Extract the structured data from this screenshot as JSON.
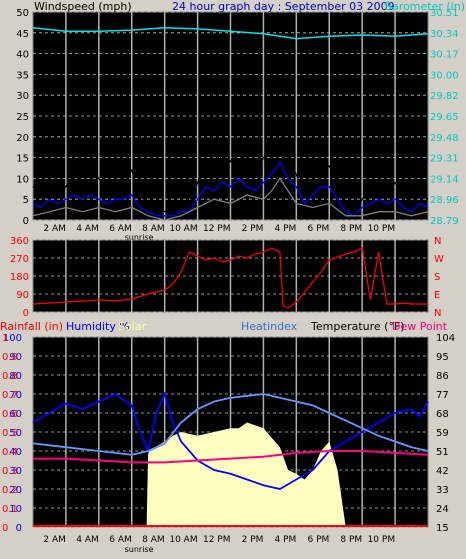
{
  "chart_data": [
    {
      "type": "line",
      "title": "24 hour graph day : September 03 2009",
      "ylabel": "Windspeed (mph)",
      "y2label": "Barometer (in)",
      "x_ticks": [
        "2 AM",
        "4 AM",
        "6 AM",
        "8 AM",
        "10 AM",
        "12 PM",
        "2 PM",
        "4 PM",
        "6 PM",
        "8 PM",
        "10 PM"
      ],
      "x_ticks_hours": [
        2,
        4,
        6,
        8,
        10,
        12,
        14,
        16,
        18,
        20,
        22
      ],
      "x_annotation": "sunrise",
      "x_annotation_hour": 6.9,
      "xlim": [
        0,
        24
      ],
      "ylim": [
        0,
        50
      ],
      "y_ticks": [
        0,
        5,
        10,
        15,
        20,
        25,
        30,
        35,
        40,
        45,
        50
      ],
      "y2lim": [
        28.79,
        30.51
      ],
      "y2_ticks": [
        "28.79",
        "28.96",
        "29.14",
        "29.31",
        "29.48",
        "29.65",
        "29.82",
        "30.00",
        "30.17",
        "30.34",
        "30.51"
      ],
      "series": [
        {
          "name": "Windspeed (mph)",
          "role": "gust",
          "color": "#000000",
          "x": [
            0,
            0.5,
            1,
            1.5,
            2,
            2.5,
            3,
            3.5,
            4,
            4.5,
            5,
            5.5,
            6,
            6.5,
            7,
            7.5,
            8,
            8.5,
            9,
            9.5,
            10,
            10.5,
            11,
            11.5,
            12,
            12.5,
            13,
            13.5,
            14,
            14.5,
            15,
            15.5,
            16,
            16.5,
            17,
            17.5,
            18,
            18.5,
            19,
            19.5,
            20,
            20.5,
            21,
            21.5,
            22,
            22.5,
            23,
            23.5,
            24
          ],
          "y": [
            8,
            6,
            10,
            7,
            8,
            11,
            9,
            12,
            10,
            8,
            9,
            10,
            12,
            6,
            4,
            3,
            2,
            3,
            5,
            4,
            9,
            14,
            12,
            16,
            14,
            18,
            13,
            11,
            15,
            17,
            22,
            14,
            11,
            6,
            10,
            12,
            13,
            9,
            3,
            1,
            5,
            7,
            8,
            6,
            9,
            6,
            4,
            7,
            5
          ]
        },
        {
          "name": "Windspeed (mph)",
          "role": "average",
          "color": "#0000ff",
          "x": [
            0,
            0.5,
            1,
            1.5,
            2,
            2.5,
            3,
            3.5,
            4,
            4.5,
            5,
            5.5,
            6,
            6.5,
            7,
            7.5,
            8,
            8.5,
            9,
            9.5,
            10,
            10.5,
            11,
            11.5,
            12,
            12.5,
            13,
            13.5,
            14,
            14.5,
            15,
            15.5,
            16,
            16.5,
            17,
            17.5,
            18,
            18.5,
            19,
            19.5,
            20,
            20.5,
            21,
            21.5,
            22,
            22.5,
            23,
            23.5,
            24
          ],
          "y": [
            4,
            3,
            5,
            4,
            5,
            6,
            5,
            6,
            5,
            4,
            5,
            5,
            6,
            3,
            2,
            1,
            1,
            1,
            2,
            2,
            5,
            8,
            7,
            9,
            8,
            10,
            8,
            7,
            9,
            11,
            14,
            10,
            8,
            4,
            6,
            8,
            8,
            5,
            2,
            1,
            3,
            4,
            5,
            4,
            5,
            3,
            2,
            4,
            3
          ]
        },
        {
          "name": "Windspeed (mph)",
          "role": "direction-speed",
          "color": "#808080",
          "x": [
            0,
            1,
            2,
            3,
            4,
            5,
            6,
            7,
            8,
            9,
            10,
            11,
            12,
            13,
            14,
            14.5,
            15,
            15.5,
            16,
            17,
            18,
            19,
            20,
            21,
            22,
            23,
            24
          ],
          "y": [
            1,
            2,
            3,
            2,
            3,
            2,
            3,
            1,
            0,
            1,
            3,
            5,
            4,
            6,
            5,
            7,
            10,
            7,
            4,
            3,
            4,
            1,
            1,
            2,
            2,
            1,
            2
          ]
        },
        {
          "name": "Barometer (in)",
          "axis": "y2",
          "color": "#00e5e5",
          "x": [
            0,
            2,
            4,
            6,
            8,
            10,
            12,
            14,
            16,
            18,
            20,
            22,
            24
          ],
          "y": [
            30.38,
            30.35,
            30.35,
            30.36,
            30.38,
            30.37,
            30.35,
            30.33,
            30.29,
            30.31,
            30.32,
            30.31,
            30.33
          ]
        }
      ]
    },
    {
      "type": "scatter",
      "ylim": [
        0,
        360
      ],
      "y_ticks": [
        0,
        90,
        180,
        270,
        360
      ],
      "y2_ticks": [
        "N",
        "E",
        "S",
        "W",
        "N"
      ],
      "series": [
        {
          "name": "Wind direction",
          "color": "#ff0000",
          "x": [
            0,
            1,
            2,
            3,
            4,
            5,
            6,
            7,
            8,
            8.5,
            9,
            9.5,
            10,
            10.5,
            11,
            11.5,
            12,
            12.5,
            13,
            13.5,
            14,
            14.5,
            15,
            15.2,
            15.5,
            16,
            16.5,
            17,
            17.5,
            18,
            19,
            19.5,
            20,
            20.5,
            21,
            21.5,
            22,
            22.5,
            23,
            24
          ],
          "y": [
            40,
            45,
            50,
            55,
            60,
            55,
            65,
            90,
            110,
            140,
            200,
            300,
            280,
            260,
            270,
            250,
            260,
            280,
            270,
            290,
            300,
            320,
            300,
            30,
            20,
            50,
            100,
            150,
            200,
            260,
            290,
            300,
            320,
            60,
            300,
            40,
            40,
            45,
            40,
            40
          ]
        }
      ]
    },
    {
      "type": "line",
      "legend": [
        "Rainfall (in)",
        "Humidity %",
        "Solar",
        "Heatindex",
        "Temperature (°F)",
        "Dew Point"
      ],
      "ylim": [
        0,
        100
      ],
      "y_ticks": [
        0,
        10,
        20,
        30,
        40,
        50,
        60,
        70,
        80,
        90,
        100
      ],
      "y_ticks_left_labels": [
        "0",
        "10",
        "20",
        "30",
        "40",
        "50",
        "60",
        "70",
        "80",
        "90",
        "100"
      ],
      "y_ticks_red": [
        "0",
        "0.1",
        "0.2",
        "0.3",
        "0.4",
        "0.5",
        "0.6",
        "0.7",
        "0.8",
        "0.9",
        "1"
      ],
      "y2lim": [
        15,
        104
      ],
      "y2_ticks": [
        "15",
        "24",
        "33",
        "42",
        "51",
        "59",
        "68",
        "77",
        "86",
        "95",
        "104"
      ],
      "x_ticks": [
        "2 AM",
        "4 AM",
        "6 AM",
        "8 AM",
        "10 AM",
        "12 PM",
        "2 PM",
        "4 PM",
        "6 PM",
        "8 PM",
        "10 PM"
      ],
      "x_annotation": "sunrise",
      "series": [
        {
          "name": "Solar",
          "color": "#ffffc0",
          "x": [
            6.9,
            7,
            8,
            8.5,
            9,
            10,
            11,
            12,
            12.5,
            13,
            14,
            15,
            15.5,
            16,
            16.5,
            17,
            17.5,
            18,
            18.5,
            19
          ],
          "y": [
            0,
            40,
            45,
            48,
            50,
            48,
            50,
            52,
            52,
            55,
            52,
            42,
            30,
            28,
            25,
            30,
            40,
            45,
            30,
            0
          ]
        },
        {
          "name": "Humidity %",
          "color": "#0000ff",
          "x": [
            0,
            1,
            2,
            3,
            4,
            5,
            6,
            6.5,
            7,
            7.5,
            8,
            8.5,
            9,
            10,
            11,
            12,
            13,
            14,
            15,
            16,
            17,
            18,
            19,
            20,
            21,
            22,
            23,
            23.5,
            24
          ],
          "y": [
            55,
            60,
            65,
            62,
            66,
            70,
            64,
            50,
            40,
            60,
            70,
            55,
            45,
            35,
            30,
            28,
            25,
            22,
            20,
            25,
            30,
            40,
            45,
            50,
            55,
            60,
            62,
            58,
            66
          ]
        },
        {
          "name": "Temperature (°F)",
          "color": "#000000",
          "x": [
            0,
            1,
            2,
            3,
            4,
            5,
            6,
            7,
            8,
            9,
            10,
            11,
            12,
            13,
            14,
            15,
            16,
            17,
            18,
            19,
            20,
            21,
            22,
            23,
            24
          ],
          "y": [
            44,
            43,
            42,
            41,
            40,
            39,
            38,
            40,
            44,
            55,
            62,
            66,
            68,
            69,
            70,
            68,
            66,
            64,
            60,
            56,
            52,
            48,
            45,
            42,
            40
          ]
        },
        {
          "name": "Heatindex",
          "color": "#6699ff",
          "x": [
            0,
            1,
            2,
            3,
            4,
            5,
            6,
            7,
            8,
            9,
            10,
            11,
            12,
            13,
            14,
            15,
            16,
            17,
            18,
            19,
            20,
            21,
            22,
            23,
            24
          ],
          "y": [
            44,
            43,
            42,
            41,
            40,
            39,
            38,
            40,
            44,
            55,
            62,
            66,
            68,
            69,
            70,
            68,
            66,
            64,
            60,
            56,
            52,
            48,
            45,
            42,
            40
          ]
        },
        {
          "name": "Dew Point",
          "color": "#ff0080",
          "x": [
            0,
            2,
            4,
            6,
            8,
            10,
            12,
            14,
            16,
            18,
            20,
            22,
            24
          ],
          "y": [
            36,
            36,
            35,
            34,
            34,
            35,
            36,
            37,
            39,
            40,
            40,
            39,
            38
          ]
        },
        {
          "name": "Rainfall (in)",
          "color": "#ff0000",
          "x": [
            0,
            24
          ],
          "y": [
            0,
            0
          ]
        }
      ]
    }
  ]
}
